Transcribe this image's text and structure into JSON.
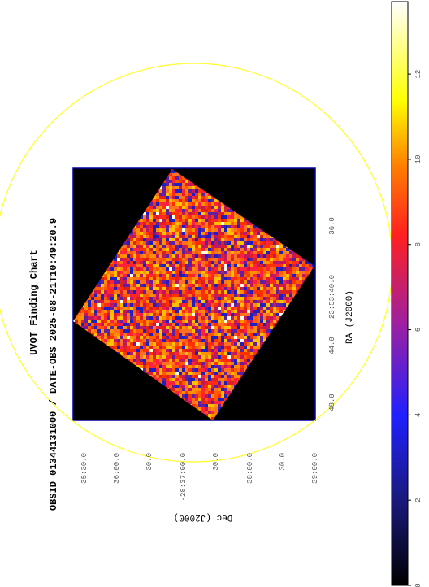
{
  "title": "UVOT Finding Chart",
  "subtitle": "OBSID 01344131000 / DATE-OBS 2025-08-21T10:49:20.9",
  "x_axis": {
    "label": "RA (J2000)",
    "ticks": [
      "48.0",
      "44.0",
      "23:53:40.0",
      "36.0"
    ]
  },
  "y_axis": {
    "label": "Dec (J2000)",
    "ticks": [
      "35:30.0",
      "36:00.0",
      "30.0",
      "-28:37:00.0",
      "30.0",
      "38:00.0",
      "30.0",
      "39:00.0"
    ]
  },
  "colorbar": {
    "range": [
      0,
      13.7
    ],
    "ticks": [
      0,
      2,
      4,
      6,
      8,
      10,
      12
    ]
  }
}
